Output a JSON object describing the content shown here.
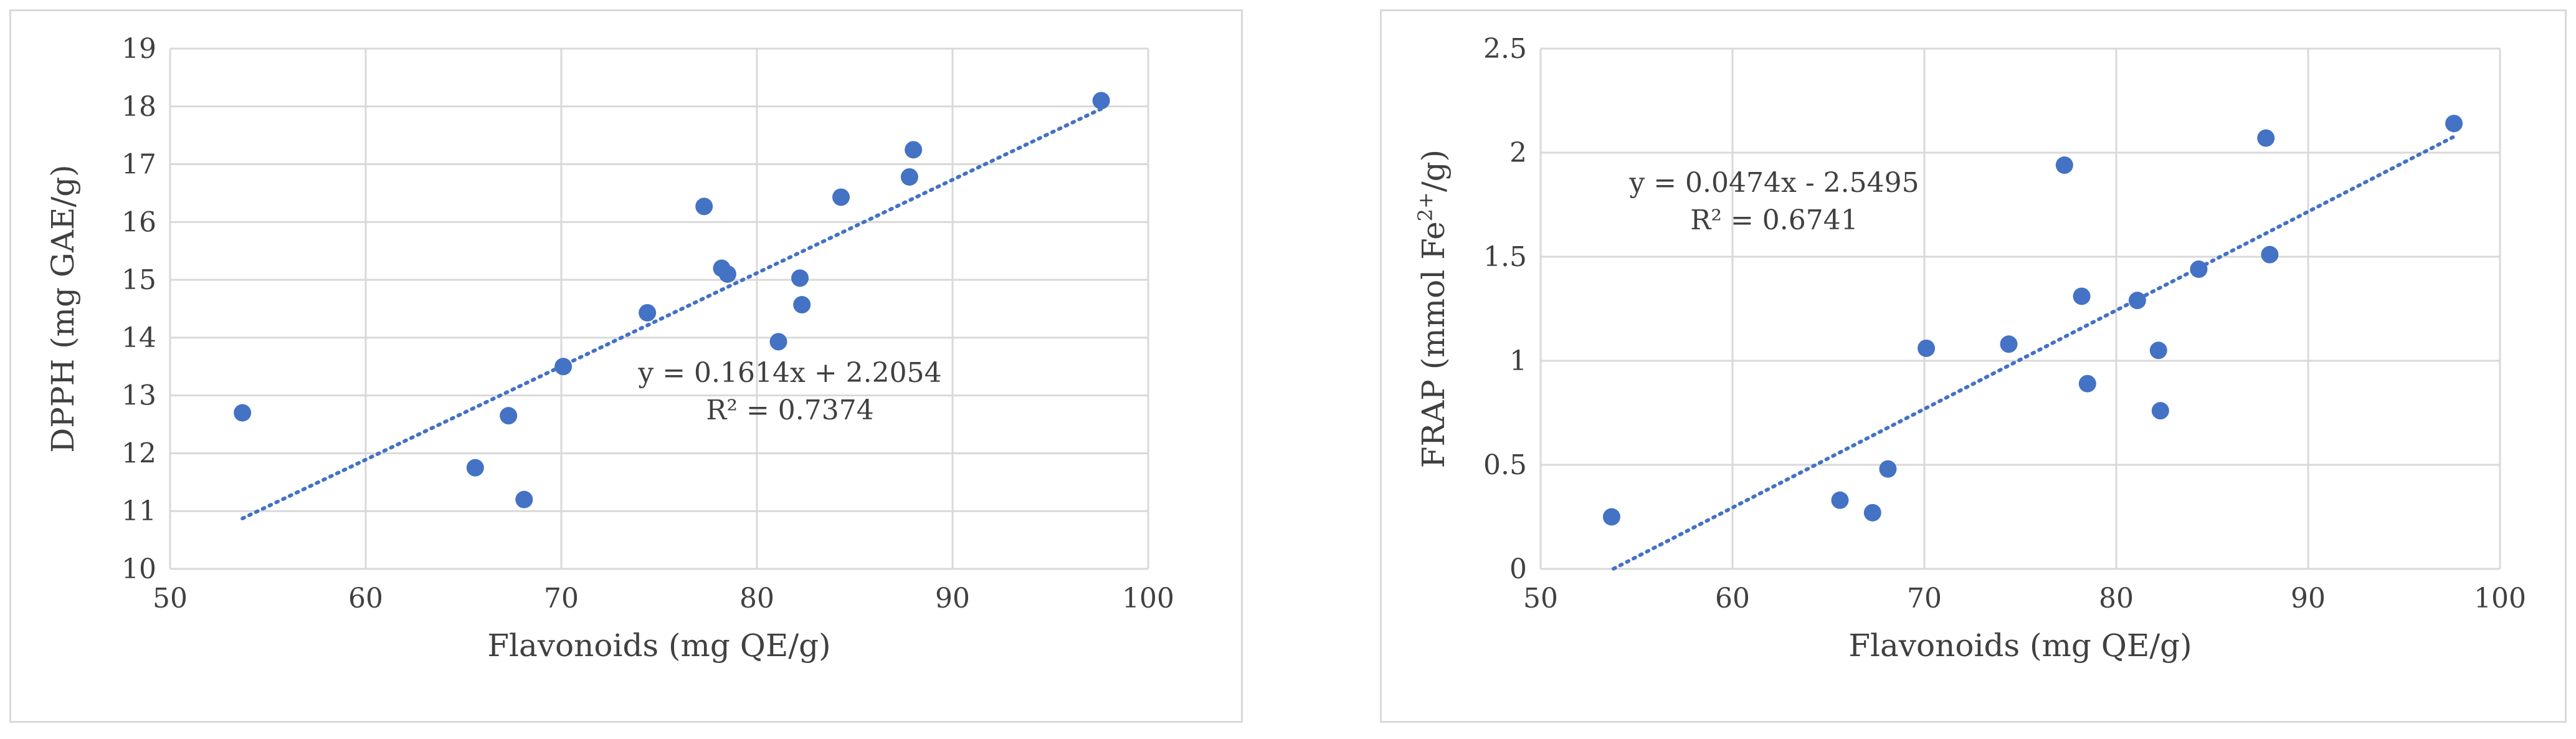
{
  "chart_data": [
    {
      "type": "scatter",
      "xlabel": "Flavonoids (mg QE/g)",
      "ylabel": "DPPH (mg GAE/g)",
      "xlim": [
        50,
        100
      ],
      "ylim": [
        10,
        19
      ],
      "xticks": [
        50,
        60,
        70,
        80,
        90,
        100
      ],
      "yticks": [
        10,
        11,
        12,
        13,
        14,
        15,
        16,
        17,
        18,
        19
      ],
      "grid": true,
      "trendline": {
        "slope": 0.1614,
        "intercept": 2.2054,
        "x_range": [
          53.7,
          97.6
        ]
      },
      "equation": "y = 0.1614x + 2.2054",
      "r2_label": "R² = 0.7374",
      "points": [
        {
          "x": 53.7,
          "y": 12.7
        },
        {
          "x": 65.6,
          "y": 11.75
        },
        {
          "x": 67.3,
          "y": 12.65
        },
        {
          "x": 68.1,
          "y": 11.2
        },
        {
          "x": 70.1,
          "y": 13.5
        },
        {
          "x": 74.4,
          "y": 14.43
        },
        {
          "x": 77.3,
          "y": 16.27
        },
        {
          "x": 78.2,
          "y": 15.2
        },
        {
          "x": 78.5,
          "y": 15.1
        },
        {
          "x": 81.1,
          "y": 13.93
        },
        {
          "x": 82.2,
          "y": 15.03
        },
        {
          "x": 82.3,
          "y": 14.57
        },
        {
          "x": 84.3,
          "y": 16.43
        },
        {
          "x": 87.8,
          "y": 16.78
        },
        {
          "x": 88.0,
          "y": 17.25
        },
        {
          "x": 97.6,
          "y": 18.1
        }
      ]
    },
    {
      "type": "scatter",
      "xlabel": "Flavonoids (mg QE/g)",
      "ylabel_main": "FRAP (mmol Fe",
      "ylabel_sup": "2+",
      "ylabel_end": "/g)",
      "xlim": [
        50,
        100
      ],
      "ylim": [
        0,
        2.5
      ],
      "xticks": [
        50,
        60,
        70,
        80,
        90,
        100
      ],
      "yticks": [
        0,
        0.5,
        1,
        1.5,
        2,
        2.5
      ],
      "grid": true,
      "trendline": {
        "slope": 0.0474,
        "intercept": -2.5495,
        "x_range": [
          53.8,
          97.6
        ]
      },
      "equation": "y = 0.0474x - 2.5495",
      "r2_label": "R² = 0.6741",
      "points": [
        {
          "x": 53.7,
          "y": 0.25
        },
        {
          "x": 65.6,
          "y": 0.33
        },
        {
          "x": 67.3,
          "y": 0.27
        },
        {
          "x": 68.1,
          "y": 0.48
        },
        {
          "x": 70.1,
          "y": 1.06
        },
        {
          "x": 74.4,
          "y": 1.08
        },
        {
          "x": 77.3,
          "y": 1.94
        },
        {
          "x": 78.2,
          "y": 1.31
        },
        {
          "x": 78.5,
          "y": 0.89
        },
        {
          "x": 81.1,
          "y": 1.29
        },
        {
          "x": 82.2,
          "y": 1.05
        },
        {
          "x": 82.3,
          "y": 0.76
        },
        {
          "x": 84.3,
          "y": 1.44
        },
        {
          "x": 87.8,
          "y": 2.07
        },
        {
          "x": 88.0,
          "y": 1.51
        },
        {
          "x": 97.6,
          "y": 2.14
        }
      ]
    }
  ]
}
